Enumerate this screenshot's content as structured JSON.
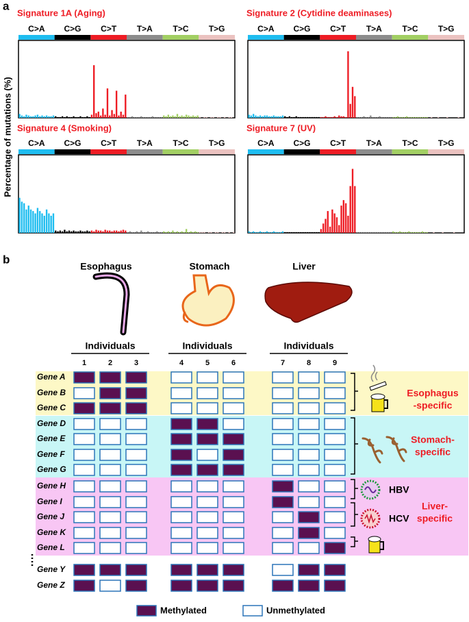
{
  "figure_a": {
    "label": "a",
    "y_label": "Percentage of mutations (%)",
    "mutation_types": [
      "C>A",
      "C>G",
      "C>T",
      "T>A",
      "T>C",
      "T>G"
    ],
    "type_colors": [
      "#1ebdf0",
      "#000000",
      "#ee1c24",
      "#8c8c8c",
      "#a2cf63",
      "#ebc2c0"
    ],
    "ylim": [
      0,
      100
    ],
    "panels": [
      {
        "title": "Signature 1A (Aging)",
        "values": [
          5,
          3,
          2,
          4,
          3,
          2,
          2,
          3,
          4,
          2,
          3,
          2,
          3,
          2,
          2,
          3,
          2,
          1,
          1,
          2,
          1,
          2,
          1,
          1,
          2,
          1,
          1,
          2,
          1,
          1,
          2,
          1,
          4,
          68,
          6,
          8,
          3,
          12,
          4,
          38,
          3,
          10,
          5,
          35,
          3,
          8,
          4,
          30,
          1,
          1,
          2,
          1,
          1,
          1,
          2,
          1,
          1,
          1,
          1,
          2,
          1,
          1,
          1,
          1,
          3,
          2,
          4,
          2,
          3,
          2,
          5,
          2,
          3,
          2,
          4,
          3,
          2,
          3,
          2,
          3,
          1,
          0,
          1,
          1,
          0,
          1,
          1,
          0,
          1,
          1,
          0,
          1,
          0,
          1,
          1,
          0
        ]
      },
      {
        "title": "Signature 2 (Cytidine deaminases)",
        "values": [
          4,
          3,
          5,
          3,
          2,
          3,
          2,
          3,
          3,
          2,
          2,
          3,
          2,
          2,
          2,
          3,
          2,
          1,
          2,
          1,
          1,
          2,
          1,
          1,
          1,
          1,
          1,
          1,
          1,
          1,
          1,
          1,
          1,
          1,
          2,
          1,
          1,
          1,
          2,
          1,
          3,
          2,
          2,
          1,
          86,
          18,
          40,
          28,
          1,
          1,
          1,
          2,
          1,
          1,
          3,
          1,
          1,
          1,
          2,
          1,
          1,
          1,
          1,
          1,
          1,
          1,
          2,
          1,
          1,
          1,
          2,
          1,
          1,
          1,
          1,
          1,
          1,
          1,
          1,
          1,
          0,
          1,
          0,
          0,
          1,
          0,
          0,
          0,
          1,
          0,
          0,
          0,
          0,
          1,
          0,
          0
        ]
      },
      {
        "title": "Signature 4 (Smoking)",
        "values": [
          45,
          40,
          38,
          30,
          35,
          30,
          28,
          25,
          32,
          28,
          25,
          22,
          30,
          25,
          22,
          25,
          3,
          2,
          3,
          2,
          4,
          2,
          3,
          2,
          3,
          2,
          2,
          3,
          2,
          2,
          3,
          2,
          3,
          2,
          4,
          3,
          3,
          2,
          4,
          3,
          3,
          2,
          3,
          3,
          2,
          3,
          4,
          3,
          1,
          2,
          1,
          1,
          2,
          1,
          3,
          1,
          1,
          2,
          1,
          1,
          1,
          2,
          1,
          1,
          2,
          1,
          2,
          1,
          3,
          1,
          2,
          1,
          2,
          1,
          5,
          1,
          2,
          1,
          2,
          1,
          1,
          1,
          1,
          0,
          1,
          1,
          0,
          1,
          1,
          0,
          1,
          1,
          0,
          1,
          0,
          1
        ]
      },
      {
        "title": "Signature 7 (UV)",
        "values": [
          2,
          1,
          2,
          1,
          1,
          2,
          1,
          1,
          2,
          1,
          1,
          2,
          1,
          1,
          1,
          2,
          1,
          1,
          1,
          1,
          1,
          1,
          1,
          1,
          1,
          1,
          1,
          1,
          1,
          1,
          1,
          1,
          5,
          12,
          18,
          28,
          8,
          30,
          25,
          20,
          10,
          35,
          42,
          38,
          22,
          60,
          82,
          60,
          1,
          1,
          1,
          1,
          1,
          1,
          1,
          1,
          1,
          1,
          1,
          1,
          1,
          1,
          1,
          1,
          2,
          1,
          1,
          2,
          1,
          1,
          1,
          2,
          1,
          1,
          1,
          1,
          1,
          2,
          1,
          1,
          0,
          0,
          1,
          0,
          0,
          0,
          1,
          0,
          0,
          0,
          0,
          1,
          0,
          0,
          0,
          0
        ]
      }
    ]
  },
  "figure_b": {
    "label": "b",
    "organs": [
      "Esophagus",
      "Stomach",
      "Liver"
    ],
    "individuals_label": "Individuals",
    "individuals": [
      1,
      2,
      3,
      4,
      5,
      6,
      7,
      8,
      9
    ],
    "genes": [
      "Gene A",
      "Gene B",
      "Gene C",
      "Gene D",
      "Gene E",
      "Gene F",
      "Gene G",
      "Gene H",
      "Gene I",
      "Gene J",
      "Gene K",
      "Gene L",
      "Gene Y",
      "Gene Z"
    ],
    "methylation": [
      [
        1,
        1,
        1,
        0,
        0,
        0,
        0,
        0,
        0
      ],
      [
        0,
        1,
        1,
        0,
        0,
        0,
        0,
        0,
        0
      ],
      [
        1,
        1,
        1,
        0,
        0,
        0,
        0,
        0,
        0
      ],
      [
        0,
        0,
        0,
        1,
        1,
        0,
        0,
        0,
        0
      ],
      [
        0,
        0,
        0,
        1,
        1,
        1,
        0,
        0,
        0
      ],
      [
        0,
        0,
        0,
        1,
        0,
        1,
        0,
        0,
        0
      ],
      [
        0,
        0,
        0,
        1,
        1,
        1,
        0,
        0,
        0
      ],
      [
        0,
        0,
        0,
        0,
        0,
        0,
        1,
        0,
        0
      ],
      [
        0,
        0,
        0,
        0,
        0,
        0,
        1,
        0,
        0
      ],
      [
        0,
        0,
        0,
        0,
        0,
        0,
        0,
        1,
        0
      ],
      [
        0,
        0,
        0,
        0,
        0,
        0,
        0,
        1,
        0
      ],
      [
        0,
        0,
        0,
        0,
        0,
        0,
        0,
        0,
        1
      ],
      [
        1,
        1,
        1,
        1,
        1,
        1,
        0,
        1,
        1
      ],
      [
        1,
        0,
        1,
        1,
        1,
        1,
        1,
        1,
        1
      ]
    ],
    "groups": [
      [
        "Esophagus",
        "-specific"
      ],
      [
        "Stomach-",
        "specific"
      ],
      [
        "Liver-",
        "specific"
      ]
    ],
    "viruses": [
      "HBV",
      "HCV"
    ],
    "legend": [
      "Methylated",
      "Unmethylated"
    ],
    "methylated_color": "#5a1050",
    "unmethylated_color": "#ffffff"
  }
}
